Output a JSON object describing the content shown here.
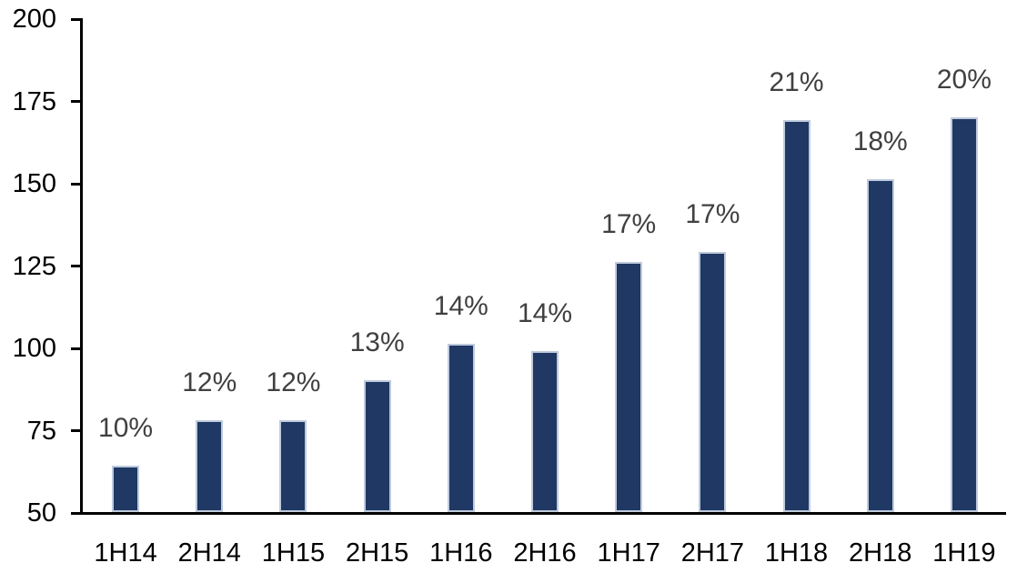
{
  "chart_data": {
    "type": "bar",
    "title": "",
    "xlabel": "",
    "ylabel": "",
    "categories": [
      "1H14",
      "2H14",
      "1H15",
      "2H15",
      "1H16",
      "2H16",
      "1H17",
      "2H17",
      "1H18",
      "2H18",
      "1H19"
    ],
    "values": [
      64,
      78,
      78,
      90,
      101,
      99,
      126,
      129,
      169,
      151,
      170
    ],
    "bar_labels": [
      "10%",
      "12%",
      "12%",
      "13%",
      "14%",
      "14%",
      "17%",
      "17%",
      "21%",
      "18%",
      "20%"
    ],
    "ylim": [
      50,
      200
    ],
    "yticks": [
      50,
      75,
      100,
      125,
      150,
      175,
      200
    ],
    "grid": false,
    "legend": false,
    "colors": {
      "bar_fill": "#1f3864",
      "bar_border": "#bfcbdd",
      "data_label": "#404040",
      "axis": "#000000",
      "background": "#ffffff"
    }
  }
}
